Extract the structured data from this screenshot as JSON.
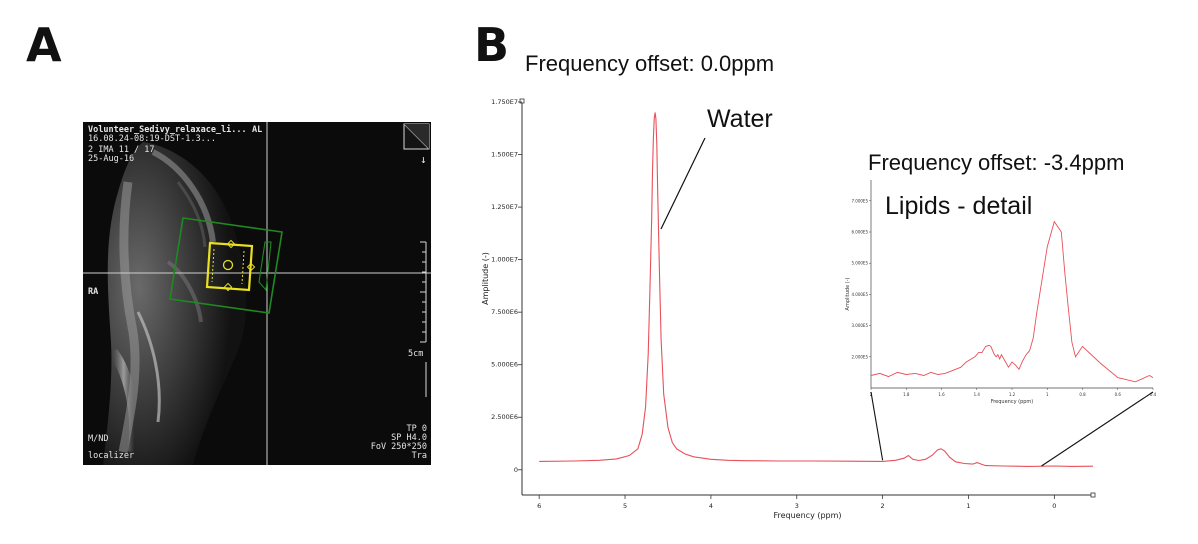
{
  "panel_a": {
    "letter": "A",
    "header_title": "Volunteer_Sedivy_relaxace_li...",
    "header_orientation": "AL",
    "header_line2": "16.08.24-08:19-DST-1.3...",
    "image_number": "2 IMA 11 / 17",
    "date": "25-Aug-16",
    "side_label": "RA",
    "scale_label": "5cm",
    "bottom_left_1": "M/ND",
    "bottom_left_2": "localizer",
    "bottom_right_1": "TP 0",
    "bottom_right_2": "SP H4.0",
    "bottom_right_3": "FoV 250*250",
    "bottom_right_4": "Tra",
    "arrow_symbol": "↓",
    "colors": {
      "voxel_outer": "#1f8a1f",
      "voxel_inner": "#e8e020",
      "crosshair": "#cfcfcf"
    }
  },
  "panel_b": {
    "letter": "B",
    "freq_offset_main": "Frequency offset: 0.0ppm",
    "water_label": "Water",
    "freq_offset_inset": "Frequency offset: -3.4ppm",
    "lipids_label": "Lipids - detail"
  },
  "chart_data": [
    {
      "type": "line",
      "title": "",
      "xlabel": "Frequency (ppm)",
      "ylabel": "Amplitude (-)",
      "xlim": [
        6.2,
        -0.45
      ],
      "ylim": [
        -0.12,
        1.75
      ],
      "x_ticks": [
        6,
        5,
        4,
        3,
        2,
        1,
        0
      ],
      "x_tick_labels": [
        "6",
        "5",
        "4",
        "3",
        "2",
        "1",
        "0"
      ],
      "y_ticks": [
        0,
        0.25,
        0.5,
        0.75,
        1.0,
        1.25,
        1.5,
        1.75
      ],
      "y_tick_labels": [
        "0",
        "2.500E6",
        "5.000E6",
        "7.500E6",
        "1.000E7",
        "1.250E7",
        "1.500E7",
        "1.750E7"
      ],
      "y_scale_multiplier": 10000000,
      "series": [
        {
          "name": "spectrum",
          "color": "#e8505a",
          "x": [
            6.0,
            5.6,
            5.3,
            5.1,
            4.95,
            4.85,
            4.8,
            4.76,
            4.73,
            4.71,
            4.69,
            4.68,
            4.67,
            4.66,
            4.65,
            4.64,
            4.63,
            4.62,
            4.6,
            4.58,
            4.55,
            4.5,
            4.45,
            4.4,
            4.3,
            4.2,
            4.0,
            3.8,
            3.6,
            3.2,
            2.8,
            2.4,
            2.0,
            1.85,
            1.75,
            1.7,
            1.65,
            1.58,
            1.5,
            1.42,
            1.36,
            1.32,
            1.28,
            1.22,
            1.15,
            1.05,
            0.95,
            0.9,
            0.86,
            0.8,
            0.6,
            0.3,
            0.0,
            -0.2,
            -0.45
          ],
          "y": [
            0.04,
            0.042,
            0.045,
            0.052,
            0.068,
            0.1,
            0.17,
            0.3,
            0.55,
            0.85,
            1.2,
            1.42,
            1.58,
            1.67,
            1.7,
            1.67,
            1.55,
            1.32,
            0.95,
            0.62,
            0.36,
            0.2,
            0.13,
            0.1,
            0.075,
            0.062,
            0.05,
            0.045,
            0.043,
            0.042,
            0.042,
            0.041,
            0.04,
            0.045,
            0.055,
            0.068,
            0.05,
            0.044,
            0.05,
            0.07,
            0.095,
            0.1,
            0.09,
            0.06,
            0.038,
            0.03,
            0.027,
            0.034,
            0.028,
            0.02,
            0.018,
            0.016,
            0.018,
            0.016,
            0.017
          ]
        }
      ]
    },
    {
      "type": "line",
      "title": "Lipids - detail",
      "xlabel": "Frequency (ppm)",
      "ylabel": "Amplitude (-)",
      "xlim": [
        2.0,
        0.4
      ],
      "ylim": [
        0,
        1.0
      ],
      "x_ticks": [
        2,
        1.8,
        1.6,
        1.4,
        1.2,
        1.0,
        0.8,
        0.6,
        0.4
      ],
      "x_tick_labels": [
        "2",
        "1.8",
        "1.6",
        "1.4",
        "1.2",
        "1",
        "0.8",
        "0.6",
        "0.4"
      ],
      "y_ticks": [
        0.15,
        0.3,
        0.45,
        0.6,
        0.75,
        0.9
      ],
      "y_tick_labels": [
        "2.000E5",
        "3.000E5",
        "4.000E5",
        "5.000E5",
        "6.000E5",
        "7.000E5"
      ],
      "series": [
        {
          "name": "lipids",
          "color": "#e8505a",
          "x": [
            2.0,
            1.95,
            1.9,
            1.85,
            1.8,
            1.75,
            1.7,
            1.66,
            1.62,
            1.58,
            1.55,
            1.52,
            1.49,
            1.46,
            1.43,
            1.41,
            1.39,
            1.37,
            1.35,
            1.33,
            1.32,
            1.31,
            1.3,
            1.29,
            1.28,
            1.27,
            1.26,
            1.24,
            1.22,
            1.2,
            1.18,
            1.16,
            1.14,
            1.12,
            1.1,
            1.08,
            1.06,
            1.03,
            1.0,
            0.96,
            0.92,
            0.9,
            0.88,
            0.86,
            0.84,
            0.8,
            0.7,
            0.6,
            0.5,
            0.42,
            0.4
          ],
          "y": [
            0.06,
            0.07,
            0.055,
            0.075,
            0.065,
            0.07,
            0.06,
            0.075,
            0.065,
            0.07,
            0.08,
            0.09,
            0.1,
            0.125,
            0.14,
            0.15,
            0.17,
            0.17,
            0.2,
            0.205,
            0.2,
            0.18,
            0.16,
            0.15,
            0.16,
            0.14,
            0.16,
            0.13,
            0.1,
            0.125,
            0.11,
            0.09,
            0.13,
            0.16,
            0.18,
            0.24,
            0.36,
            0.52,
            0.68,
            0.8,
            0.75,
            0.55,
            0.38,
            0.22,
            0.15,
            0.2,
            0.12,
            0.05,
            0.03,
            0.06,
            0.05
          ]
        }
      ]
    }
  ]
}
